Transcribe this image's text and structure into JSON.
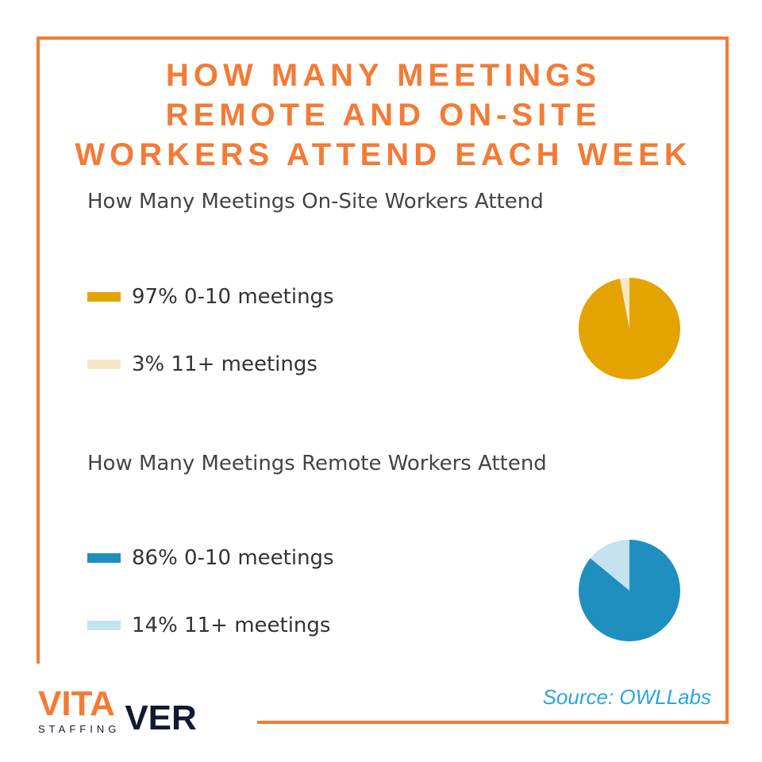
{
  "title_lines": [
    "HOW MANY MEETINGS",
    "REMOTE AND ON-SITE",
    "WORKERS ATTEND EACH WEEK"
  ],
  "source": "Source: OWLLabs",
  "logo": {
    "text_main_1": "VITA",
    "text_main_2": "VER",
    "text_sub": "STAFFING"
  },
  "colors": {
    "frame": "#f47b35",
    "onsite_major": "#e5a300",
    "onsite_minor": "#f7e7c4",
    "remote_major": "#1f8fbf",
    "remote_minor": "#c4e2ef",
    "source": "#2aa7dc",
    "logo_dark": "#111a33"
  },
  "chart_data": [
    {
      "type": "pie",
      "title": "How Many Meetings On-Site Workers Attend",
      "slices": [
        {
          "label": "0-10 meetings",
          "value": 97,
          "display": "97% 0-10 meetings",
          "color": "#e5a300"
        },
        {
          "label": "11+ meetings",
          "value": 3,
          "display": "3% 11+ meetings",
          "color": "#f7e7c4"
        }
      ]
    },
    {
      "type": "pie",
      "title": "How Many Meetings Remote Workers Attend",
      "slices": [
        {
          "label": "0-10 meetings",
          "value": 86,
          "display": "86% 0-10 meetings",
          "color": "#1f8fbf"
        },
        {
          "label": "11+ meetings",
          "value": 14,
          "display": "14% 11+ meetings",
          "color": "#c4e2ef"
        }
      ]
    }
  ]
}
